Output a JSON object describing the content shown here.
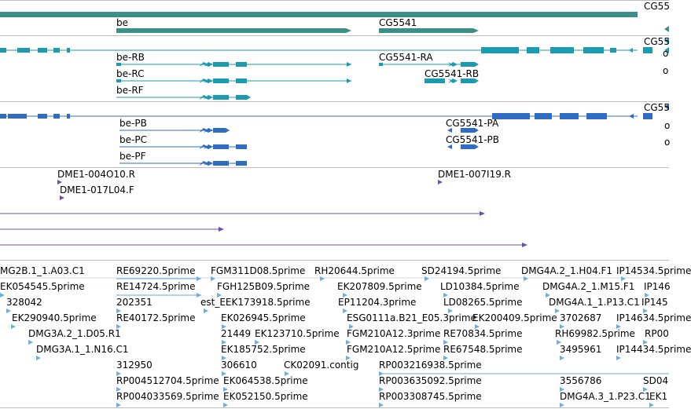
{
  "colors": {
    "gene": "#3a8f88",
    "transcript_a": "#1a9bb0",
    "transcript_b": "#2f6cc4",
    "clone": "#6b4fb0",
    "est": "#6aaedb",
    "separator": "#bdbdbd"
  },
  "tracks": {
    "genes": {
      "labels": [
        "CG55",
        "be",
        "CG5541"
      ]
    },
    "transcripts_a": {
      "labels": [
        "CG55",
        "be-RB",
        "CG5541-RA",
        "be-RC",
        "CG5541-RB",
        "be-RF"
      ],
      "right_fragments": [
        "o",
        "o"
      ]
    },
    "transcripts_b": {
      "labels": [
        "CG55",
        "be-PB",
        "CG5541-PA",
        "be-PC",
        "CG5541-PB",
        "be-PF"
      ],
      "right_fragments": [
        "o",
        "o"
      ]
    },
    "clones": {
      "labels": [
        "DME1-004O10.R",
        "DME1-007I19.R",
        "DME1-017L04.F"
      ]
    },
    "ests": {
      "labels": [
        "MG2B.1_1.A03.C1",
        "RE69220.5prime",
        "FGM311D08.5prime",
        "RH20644.5prime",
        "SD24194.5prime",
        "DMG4A.2_1.H04.F1",
        "IP14534.5prime",
        "EK054545.5prime",
        "RE14724.5prime",
        "FGH125B09.5prime",
        "EK207809.5prime",
        "LD10384.5prime",
        "DMG4A.2_1.M15.F1",
        "IP146",
        "328042",
        "202351",
        "est_EEK173918.5prime",
        "EP11204.3prime",
        "LD08265.5prime",
        "DMG4A.1_1.P13.C1",
        "IP145",
        "EK290940.5prime",
        "RE40172.5prime",
        "EK026945.5prime",
        "ESG0111a.B21_E05.3prime",
        "EK200409.5prime",
        "3702687",
        "IP14634.5prime",
        "DMG3A.2_1.D05.R1",
        "21449",
        "EK123710.5prime",
        "FGM210A12.3prime",
        "RE70834.5prime",
        "RH69982.5prime",
        "RP00",
        "DMG3A.1_1.N16.C1",
        "EK185752.5prime",
        "FGM210A12.5prime",
        "RE67548.5prime",
        "3495961",
        "IP14434.5prime",
        "312950",
        "306610",
        "CK02091.contig",
        "RP003216938.5prime",
        "RP004512704.5prime",
        "EK064538.5prime",
        "RP003635092.5prime",
        "3556786",
        "SD04",
        "RP004033569.5prime",
        "EK052150.5prime",
        "RP003308745.5prime",
        "DMG4A.3_1.P23.C1",
        "EK1"
      ]
    }
  }
}
